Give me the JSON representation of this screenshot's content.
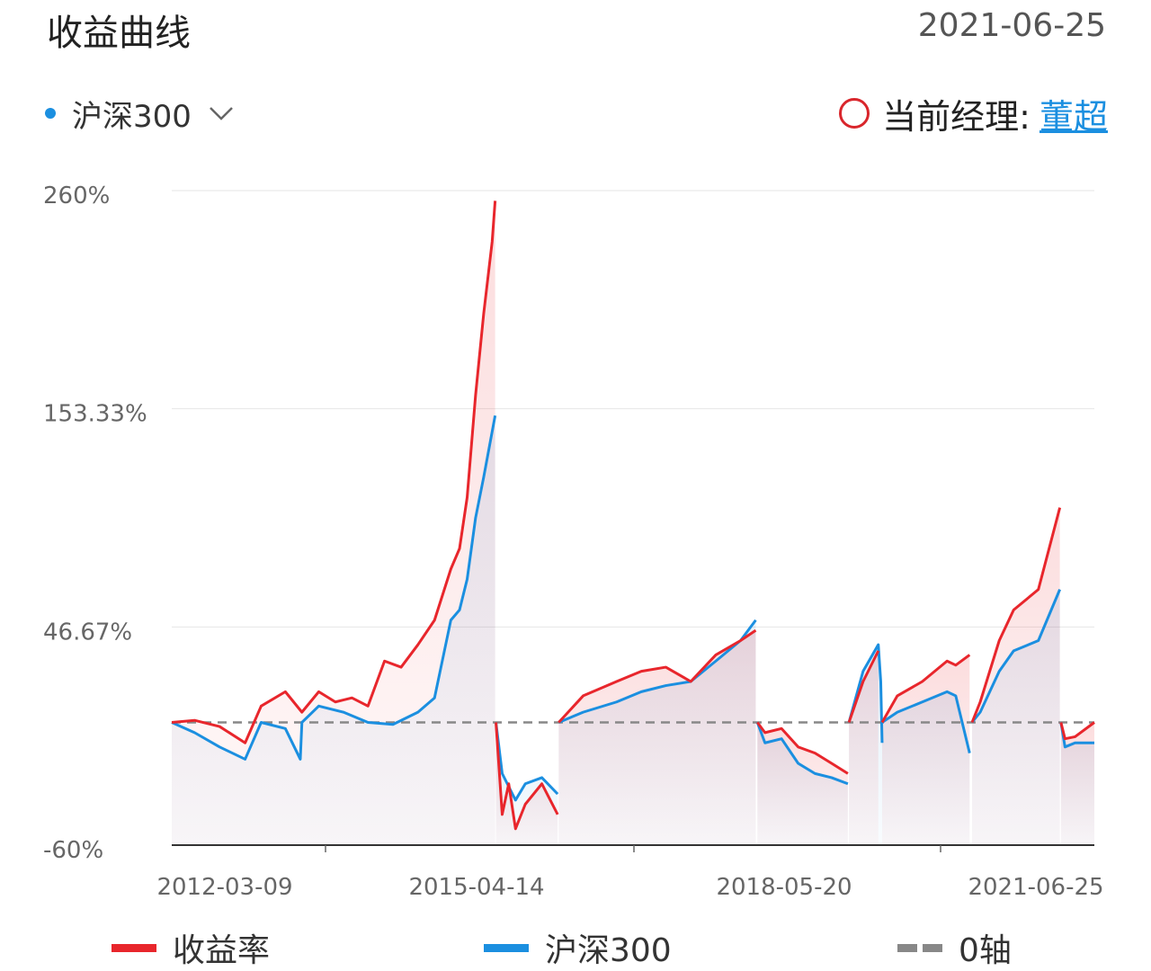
{
  "header": {
    "title": "收益曲线",
    "date": "2021-06-25"
  },
  "benchmark": {
    "label": "沪深300",
    "dot_color": "#1b8fe0"
  },
  "manager": {
    "label": "当前经理:",
    "name": "董超"
  },
  "colors": {
    "fund": "#e8262c",
    "benchmark": "#1b8fe0",
    "zero": "#888888"
  },
  "chart_data": {
    "type": "line",
    "ylim": [
      -60,
      260
    ],
    "yticks": [
      "260%",
      "153.33%",
      "46.67%",
      "-60%"
    ],
    "ytick_values": [
      260,
      153.33,
      46.67,
      -60
    ],
    "xticks": [
      "2012-03-09",
      "2015-04-14",
      "2018-05-20",
      "2021-06-25"
    ],
    "x_domain": [
      "2012-03-09",
      "2021-06-25"
    ],
    "legend": [
      "收益率",
      "沪深300",
      "0轴"
    ],
    "legend_position": "bottom",
    "grid": true,
    "series": [
      {
        "name": "收益率",
        "segments": [
          [
            [
              "2012-03-09",
              0
            ],
            [
              "2012-06-01",
              1
            ],
            [
              "2012-09-01",
              -2
            ],
            [
              "2012-12-04",
              -10
            ],
            [
              "2013-02-01",
              8
            ],
            [
              "2013-05-01",
              15
            ],
            [
              "2013-07-01",
              5
            ],
            [
              "2013-09-01",
              15
            ],
            [
              "2013-11-01",
              10
            ],
            [
              "2014-01-01",
              12
            ],
            [
              "2014-03-01",
              8
            ],
            [
              "2014-05-01",
              30
            ],
            [
              "2014-07-01",
              27
            ],
            [
              "2014-09-01",
              38
            ],
            [
              "2014-11-01",
              50
            ],
            [
              "2014-12-31",
              75
            ],
            [
              "2015-02-01",
              85
            ],
            [
              "2015-03-01",
              110
            ],
            [
              "2015-04-01",
              160
            ],
            [
              "2015-05-01",
              200
            ],
            [
              "2015-06-01",
              235
            ],
            [
              "2015-06-12",
              255
            ]
          ],
          [
            [
              "2015-06-15",
              0
            ],
            [
              "2015-07-08",
              -45
            ],
            [
              "2015-08-01",
              -30
            ],
            [
              "2015-08-26",
              -52
            ],
            [
              "2015-10-01",
              -40
            ],
            [
              "2015-12-01",
              -30
            ],
            [
              "2016-01-28",
              -45
            ]
          ],
          [
            [
              "2016-02-01",
              0
            ],
            [
              "2016-05-01",
              13
            ],
            [
              "2016-09-01",
              20
            ],
            [
              "2016-12-01",
              25
            ],
            [
              "2017-03-01",
              27
            ],
            [
              "2017-06-01",
              20
            ],
            [
              "2017-09-01",
              33
            ],
            [
              "2017-12-01",
              40
            ],
            [
              "2018-01-26",
              45
            ]
          ],
          [
            [
              "2018-02-01",
              0
            ],
            [
              "2018-03-01",
              -5
            ],
            [
              "2018-05-01",
              -3
            ],
            [
              "2018-07-01",
              -12
            ],
            [
              "2018-09-01",
              -15
            ],
            [
              "2018-11-01",
              -20
            ],
            [
              "2018-12-31",
              -25
            ]
          ],
          [
            [
              "2019-01-04",
              0
            ],
            [
              "2019-02-25",
              20
            ],
            [
              "2019-04-22",
              35
            ]
          ],
          [
            [
              "2019-05-06",
              0
            ],
            [
              "2019-07-01",
              13
            ],
            [
              "2019-10-01",
              20
            ],
            [
              "2019-12-31",
              30
            ],
            [
              "2020-02-01",
              28
            ],
            [
              "2020-03-23",
              33
            ]
          ],
          [
            [
              "2020-04-01",
              0
            ],
            [
              "2020-05-01",
              10
            ],
            [
              "2020-07-10",
              40
            ],
            [
              "2020-09-01",
              55
            ],
            [
              "2020-12-01",
              65
            ],
            [
              "2021-02-18",
              105
            ]
          ],
          [
            [
              "2021-02-22",
              0
            ],
            [
              "2021-03-09",
              -8
            ],
            [
              "2021-04-15",
              -7
            ],
            [
              "2021-06-25",
              0
            ]
          ]
        ]
      },
      {
        "name": "沪深300",
        "segments": [
          [
            [
              "2012-03-09",
              0
            ],
            [
              "2012-06-01",
              -5
            ],
            [
              "2012-09-01",
              -12
            ],
            [
              "2012-12-04",
              -18
            ],
            [
              "2013-02-01",
              0
            ],
            [
              "2013-05-01",
              -3
            ],
            [
              "2013-06-25",
              -18
            ],
            [
              "2013-07-01",
              0
            ],
            [
              "2013-09-01",
              8
            ],
            [
              "2013-12-01",
              5
            ],
            [
              "2014-03-01",
              0
            ],
            [
              "2014-06-01",
              -1
            ],
            [
              "2014-09-01",
              5
            ],
            [
              "2014-11-01",
              12
            ],
            [
              "2014-12-31",
              50
            ],
            [
              "2015-02-01",
              55
            ],
            [
              "2015-03-01",
              70
            ],
            [
              "2015-04-01",
              100
            ],
            [
              "2015-05-01",
              120
            ],
            [
              "2015-06-12",
              150
            ]
          ],
          [
            [
              "2015-06-15",
              0
            ],
            [
              "2015-07-08",
              -25
            ],
            [
              "2015-08-26",
              -38
            ],
            [
              "2015-10-01",
              -30
            ],
            [
              "2015-12-01",
              -27
            ],
            [
              "2016-01-28",
              -35
            ]
          ],
          [
            [
              "2016-02-01",
              0
            ],
            [
              "2016-05-01",
              5
            ],
            [
              "2016-09-01",
              10
            ],
            [
              "2016-12-01",
              15
            ],
            [
              "2017-03-01",
              18
            ],
            [
              "2017-06-01",
              20
            ],
            [
              "2017-09-01",
              30
            ],
            [
              "2017-12-01",
              40
            ],
            [
              "2018-01-26",
              50
            ]
          ],
          [
            [
              "2018-02-01",
              0
            ],
            [
              "2018-03-01",
              -10
            ],
            [
              "2018-05-01",
              -8
            ],
            [
              "2018-07-01",
              -20
            ],
            [
              "2018-09-01",
              -25
            ],
            [
              "2018-11-01",
              -27
            ],
            [
              "2018-12-31",
              -30
            ]
          ],
          [
            [
              "2019-01-04",
              0
            ],
            [
              "2019-02-25",
              25
            ],
            [
              "2019-04-22",
              38
            ],
            [
              "2019-05-01",
              20
            ],
            [
              "2019-05-06",
              -10
            ]
          ],
          [
            [
              "2019-05-06",
              0
            ],
            [
              "2019-07-01",
              5
            ],
            [
              "2019-10-01",
              10
            ],
            [
              "2019-12-31",
              15
            ],
            [
              "2020-02-01",
              13
            ],
            [
              "2020-03-23",
              -15
            ]
          ],
          [
            [
              "2020-04-01",
              0
            ],
            [
              "2020-05-01",
              5
            ],
            [
              "2020-07-10",
              25
            ],
            [
              "2020-09-01",
              35
            ],
            [
              "2020-12-01",
              40
            ],
            [
              "2021-02-18",
              65
            ]
          ],
          [
            [
              "2021-02-22",
              0
            ],
            [
              "2021-03-09",
              -12
            ],
            [
              "2021-04-15",
              -10
            ],
            [
              "2021-06-25",
              -10
            ]
          ]
        ]
      }
    ]
  }
}
